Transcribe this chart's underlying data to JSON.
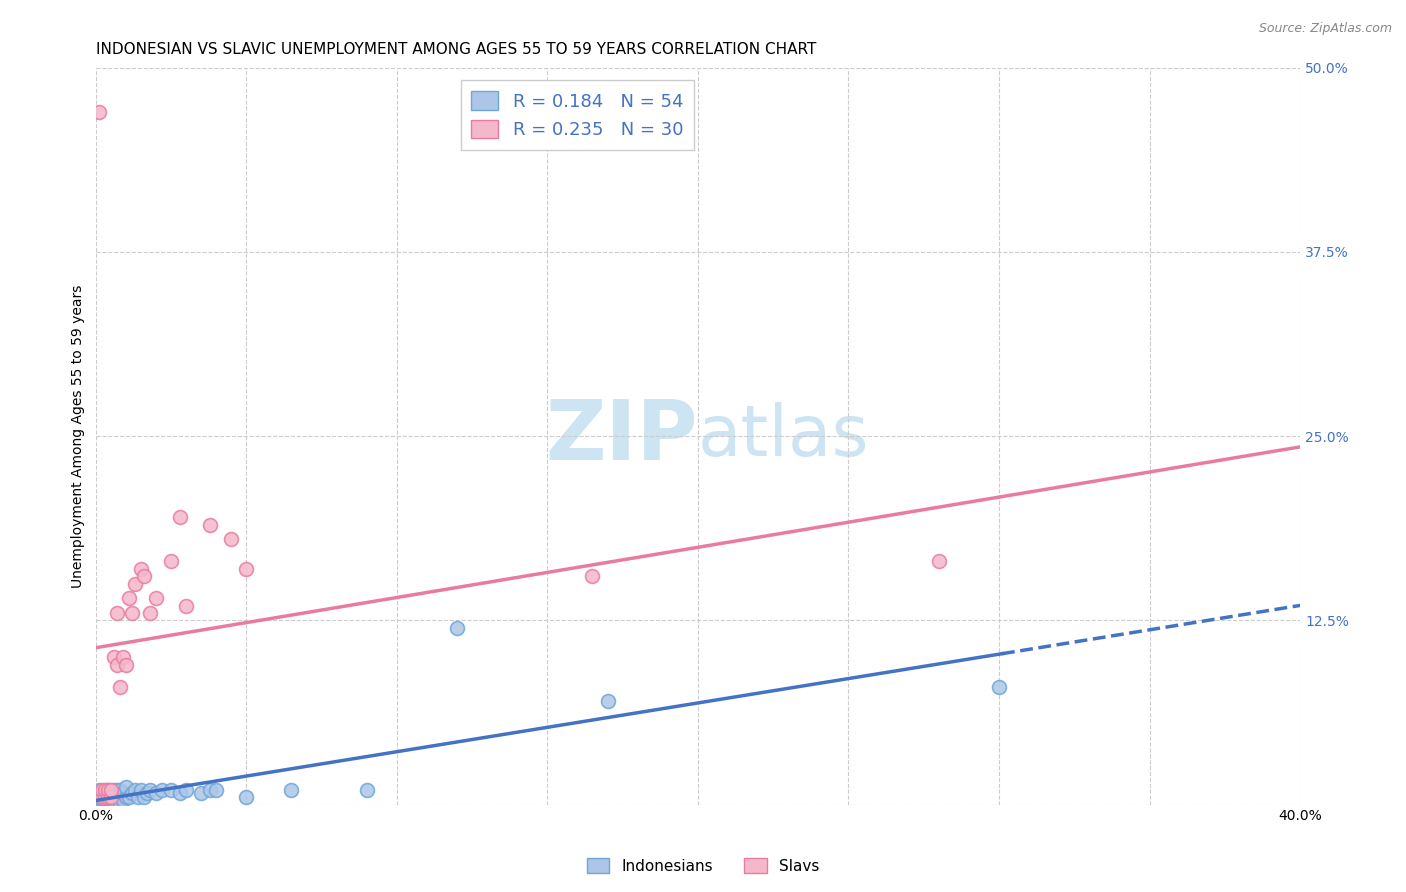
{
  "title": "INDONESIAN VS SLAVIC UNEMPLOYMENT AMONG AGES 55 TO 59 YEARS CORRELATION CHART",
  "source": "Source: ZipAtlas.com",
  "ylabel": "Unemployment Among Ages 55 to 59 years",
  "xlim": [
    0.0,
    0.4
  ],
  "ylim": [
    0.0,
    0.5
  ],
  "xticks": [
    0.0,
    0.05,
    0.1,
    0.15,
    0.2,
    0.25,
    0.3,
    0.35,
    0.4
  ],
  "yticks": [
    0.0,
    0.125,
    0.25,
    0.375,
    0.5
  ],
  "indonesian_color": "#adc6e8",
  "slavic_color": "#f5b8ca",
  "indonesian_edge_color": "#6ea6d8",
  "slavic_edge_color": "#e87ca0",
  "indonesian_line_color": "#4472c4",
  "slavic_line_color": "#e87ca0",
  "legend_text_color": "#4472c4",
  "R_indonesian": 0.184,
  "N_indonesian": 54,
  "R_slavic": 0.235,
  "N_slavic": 30,
  "indonesian_x": [
    0.0,
    0.001,
    0.001,
    0.001,
    0.002,
    0.002,
    0.002,
    0.002,
    0.003,
    0.003,
    0.003,
    0.003,
    0.004,
    0.004,
    0.004,
    0.005,
    0.005,
    0.005,
    0.005,
    0.006,
    0.006,
    0.006,
    0.007,
    0.007,
    0.007,
    0.008,
    0.008,
    0.008,
    0.009,
    0.009,
    0.01,
    0.01,
    0.011,
    0.012,
    0.013,
    0.014,
    0.015,
    0.016,
    0.017,
    0.018,
    0.02,
    0.022,
    0.025,
    0.028,
    0.03,
    0.035,
    0.038,
    0.04,
    0.05,
    0.065,
    0.09,
    0.12,
    0.17,
    0.3
  ],
  "indonesian_y": [
    0.0,
    0.002,
    0.005,
    0.01,
    0.0,
    0.003,
    0.005,
    0.008,
    0.0,
    0.003,
    0.005,
    0.008,
    0.0,
    0.003,
    0.01,
    0.0,
    0.003,
    0.005,
    0.008,
    0.002,
    0.005,
    0.01,
    0.0,
    0.005,
    0.01,
    0.0,
    0.005,
    0.01,
    0.003,
    0.008,
    0.005,
    0.012,
    0.005,
    0.008,
    0.01,
    0.005,
    0.01,
    0.005,
    0.008,
    0.01,
    0.008,
    0.01,
    0.01,
    0.008,
    0.01,
    0.008,
    0.01,
    0.01,
    0.005,
    0.01,
    0.01,
    0.12,
    0.07,
    0.08
  ],
  "slavic_x": [
    0.001,
    0.002,
    0.002,
    0.003,
    0.003,
    0.004,
    0.004,
    0.005,
    0.005,
    0.006,
    0.007,
    0.007,
    0.008,
    0.009,
    0.01,
    0.011,
    0.012,
    0.013,
    0.015,
    0.016,
    0.018,
    0.02,
    0.025,
    0.028,
    0.03,
    0.038,
    0.045,
    0.05,
    0.165,
    0.28
  ],
  "slavic_y": [
    0.47,
    0.005,
    0.01,
    0.005,
    0.01,
    0.005,
    0.01,
    0.005,
    0.01,
    0.1,
    0.095,
    0.13,
    0.08,
    0.1,
    0.095,
    0.14,
    0.13,
    0.15,
    0.16,
    0.155,
    0.13,
    0.14,
    0.165,
    0.195,
    0.135,
    0.19,
    0.18,
    0.16,
    0.155,
    0.165
  ],
  "background_color": "#ffffff",
  "grid_color": "#cccccc",
  "marker_size": 100,
  "title_fontsize": 11,
  "axis_label_fontsize": 10,
  "tick_fontsize": 10,
  "watermark_zip": "ZIP",
  "watermark_atlas": "atlas",
  "watermark_color": "#cde4f2",
  "watermark_fontsize": 60
}
